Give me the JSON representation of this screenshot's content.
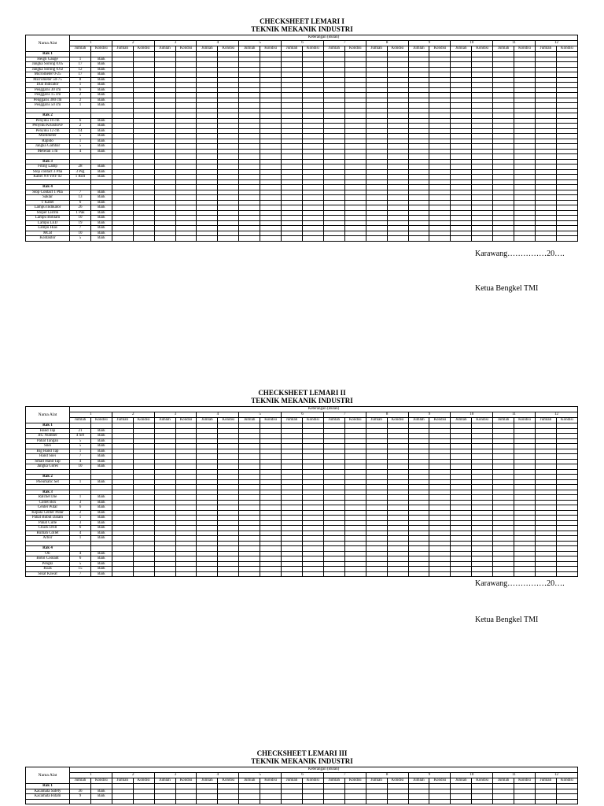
{
  "labels": {
    "nama_alat": "Nama Alat",
    "keterangan": "Keterangan (Bulan)",
    "jumlah": "Jumlah",
    "kondisi": "Kondisi"
  },
  "months": [
    "1",
    "2",
    "3",
    "4",
    "5",
    "6",
    "7",
    "8",
    "9",
    "10",
    "11",
    "12"
  ],
  "signatures": [
    {
      "place": "Karawang……………20….",
      "role": "Ketua Bengkel TMI"
    },
    {
      "place": "Karawang……………20….",
      "role": "Ketua Bengkel TMI"
    }
  ],
  "tables": [
    {
      "title1": "CHECKSHEET LEMARI I",
      "title2": "TEKNIK MEKANIK INDUSTRI",
      "sections": [
        {
          "label": "Rak 1",
          "items": [
            {
              "name": "Heigh Gauge",
              "jumlah": "1",
              "kondisi": "Baik"
            },
            {
              "name": "Jangka Sorong 0.05",
              "jumlah": "17",
              "kondisi": "Baik"
            },
            {
              "name": "Jangka Sorong 0.02",
              "jumlah": "12",
              "kondisi": "Baik"
            },
            {
              "name": "Micrometer 0-25",
              "jumlah": "17",
              "kondisi": "Baik"
            },
            {
              "name": "Micrometer 50-75",
              "jumlah": "8",
              "kondisi": "Baik"
            },
            {
              "name": "Dial Indicator",
              "jumlah": "1",
              "kondisi": "Baik"
            },
            {
              "name": "Penggaris 30 cm",
              "jumlah": "6",
              "kondisi": "Baik"
            },
            {
              "name": "Penggaris 15 cm",
              "jumlah": "2",
              "kondisi": "Baik"
            },
            {
              "name": "Penggaris 300 cm",
              "jumlah": "2",
              "kondisi": "Baik"
            },
            {
              "name": "Penggaris 50 cm",
              "jumlah": "1",
              "kondisi": "Baik"
            }
          ]
        },
        {
          "label": "Rak 2",
          "items": [
            {
              "name": "Penyiku 10 cm",
              "jumlah": "6",
              "kondisi": "Baik"
            },
            {
              "name": "Penyiku Kruishove",
              "jumlah": "2",
              "kondisi": "Baik"
            },
            {
              "name": "Penyiku 12 cm",
              "jumlah": "14",
              "kondisi": "Baik"
            },
            {
              "name": "Multimeter",
              "jumlah": "5",
              "kondisi": "Baik"
            },
            {
              "name": "Rapido",
              "jumlah": "1",
              "kondisi": "Baik"
            },
            {
              "name": "Jangka Gambar",
              "jumlah": "5",
              "kondisi": "Baik"
            },
            {
              "name": "Meteran 5 m",
              "jumlah": "4",
              "kondisi": "Baik"
            }
          ]
        },
        {
          "label": "Rak 3",
          "items": [
            {
              "name": "Fiting Lamp",
              "jumlah": "28",
              "kondisi": "Baik"
            },
            {
              "name": "Stop contact 3 Pha",
              "jumlah": "3 Psg",
              "kondisi": "Baik"
            },
            {
              "name": "Kabel NYYAY 02",
              "jumlah": "1 Roll",
              "kondisi": "Baik"
            }
          ]
        },
        {
          "label": "Rak 4",
          "items": [
            {
              "name": "Stop Contact 1 Pha",
              "jumlah": "7",
              "kondisi": "Baik"
            },
            {
              "name": "Saklar",
              "jumlah": "13",
              "kondisi": "Baik"
            },
            {
              "name": "T Kabel",
              "jumlah": "6",
              "kondisi": "Baik"
            },
            {
              "name": "Lampu Indikator",
              "jumlah": "26",
              "kondisi": "Baik"
            },
            {
              "name": "Stoper Listrik",
              "jumlah": "1 Pak",
              "kondisi": "Baik"
            },
            {
              "name": "Lampu Bohlam",
              "jumlah": "10",
              "kondisi": "Baik"
            },
            {
              "name": "Lampu LED",
              "jumlah": "19",
              "kondisi": "Baik"
            },
            {
              "name": "Lampu Hias",
              "jumlah": "7",
              "kondisi": "Baik"
            },
            {
              "name": "MCB",
              "jumlah": "10",
              "kondisi": "Baik"
            },
            {
              "name": "Kontaktor",
              "jumlah": "5",
              "kondisi": "Baik"
            }
          ]
        }
      ]
    },
    {
      "title1": "CHECKSHEET LEMARI II",
      "title2": "TEKNIK MEKANIK INDUSTRI",
      "sections": [
        {
          "label": "Rak 1",
          "items": [
            {
              "name": "Hand Tap",
              "jumlah": "21",
              "kondisi": "Baik"
            },
            {
              "name": "JIG Number",
              "jumlah": "4 Set",
              "kondisi": "Baik"
            },
            {
              "name": "Pahat Tangan",
              "jumlah": "5",
              "kondisi": "Baik"
            },
            {
              "name": "Snei",
              "jumlah": "5",
              "kondisi": "Baik"
            },
            {
              "name": "Big Hand Tap",
              "jumlah": "1",
              "kondisi": "Baik"
            },
            {
              "name": "Hand Snei",
              "jumlah": "7",
              "kondisi": "Baik"
            },
            {
              "name": "Small Hand Tap",
              "jumlah": "4",
              "kondisi": "Baik"
            },
            {
              "name": "Jangka Gores",
              "jumlah": "10",
              "kondisi": "Baik"
            }
          ]
        },
        {
          "label": "Rak 2",
          "items": [
            {
              "name": "Pneumatic Set",
              "jumlah": "1",
              "kondisi": "Baik"
            }
          ]
        },
        {
          "label": "Rak 3",
          "items": [
            {
              "name": "Ratchet Die",
              "jumlah": "1",
              "kondisi": "Baik"
            },
            {
              "name": "Collet Box",
              "jumlah": "3",
              "kondisi": "Baik"
            },
            {
              "name": "Center Putar",
              "jumlah": "6",
              "kondisi": "Baik"
            },
            {
              "name": "Kepala Center Putar",
              "jumlah": "2",
              "kondisi": "Baik"
            },
            {
              "name": "Pahat Bubut Dalam",
              "jumlah": "1",
              "kondisi": "Baik"
            },
            {
              "name": "Pahat Cutle",
              "jumlah": "3",
              "kondisi": "Baik"
            },
            {
              "name": "Chuck Drill",
              "jumlah": "6",
              "kondisi": "Baik"
            },
            {
              "name": "Rumah Collet",
              "jumlah": "4",
              "kondisi": "Baik"
            },
            {
              "name": "Arbor",
              "jumlah": "1",
              "kondisi": "Baik"
            }
          ]
        },
        {
          "label": "Rak 4",
          "items": [
            {
              "name": "Oli",
              "jumlah": "4",
              "kondisi": "Baik"
            },
            {
              "name": "Botol Coolant",
              "jumlah": "6",
              "kondisi": "Baik"
            },
            {
              "name": "Pengki",
              "jumlah": "5",
              "kondisi": "Baik"
            },
            {
              "name": "Kuas",
              "jumlah": "15",
              "kondisi": "Baik"
            },
            {
              "name": "Sikat Kawat",
              "jumlah": "7",
              "kondisi": "Baik"
            }
          ]
        }
      ]
    },
    {
      "title1": "CHECKSHEET LEMARI III",
      "title2": "TEKNIK MEKANIK INDUSTRI",
      "sections": [
        {
          "label": "Rak 1",
          "items": [
            {
              "name": "Kacamata Safety",
              "jumlah": "36",
              "kondisi": "Baik"
            },
            {
              "name": "Kacamata Hitam",
              "jumlah": "9",
              "kondisi": "Baik"
            },
            {
              "name": "",
              "jumlah": "",
              "kondisi": ""
            }
          ]
        }
      ]
    }
  ]
}
